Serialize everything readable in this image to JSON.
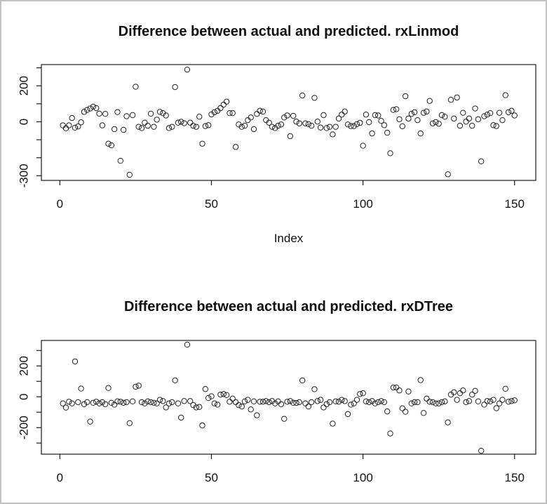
{
  "figure": {
    "background": "#ffffff",
    "border_color": "#c3c3c3",
    "point_color": "#222222",
    "axis_color": "#1a1a1a"
  },
  "chart_data": [
    {
      "id": "rxLinmod",
      "type": "scatter",
      "title": "Difference between actual and predicted. rxLinmod",
      "xlabel": "Index",
      "ylabel": "",
      "grid": false,
      "legend": "none",
      "marker": "open-circle",
      "xlim": [
        -6.1,
        157
      ],
      "ylim": [
        -326,
        318
      ],
      "x_ticks": [
        {
          "v": 0,
          "label": "0"
        },
        {
          "v": 50,
          "label": "50"
        },
        {
          "v": 100,
          "label": "100"
        },
        {
          "v": 150,
          "label": "150"
        }
      ],
      "y_ticks": [
        {
          "v": 300,
          "label": ""
        },
        {
          "v": 200,
          "label": "200"
        },
        {
          "v": 100,
          "label": ""
        },
        {
          "v": 0,
          "label": "0"
        },
        {
          "v": -100,
          "label": ""
        },
        {
          "v": -200,
          "label": ""
        },
        {
          "v": -300,
          "label": "-300"
        }
      ],
      "x_start": 1,
      "values": [
        -20,
        -36,
        -20,
        21,
        -33,
        -26,
        -3,
        55,
        66,
        74,
        84,
        76,
        45,
        -20,
        44,
        -122,
        -131,
        -41,
        54,
        -217,
        -45,
        31,
        -295,
        37,
        195,
        -28,
        -35,
        -5,
        -22,
        45,
        -28,
        12,
        55,
        48,
        35,
        -35,
        -28,
        193,
        -5,
        0,
        -8,
        290,
        -5,
        -22,
        -28,
        28,
        -122,
        -24,
        -19,
        41,
        53,
        61,
        76,
        95,
        112,
        48,
        48,
        -140,
        -15,
        -28,
        -22,
        9,
        24,
        -41,
        44,
        61,
        57,
        9,
        -5,
        -28,
        -35,
        -22,
        -15,
        24,
        35,
        -80,
        33,
        1,
        -9,
        146,
        -9,
        -13,
        -22,
        133,
        1,
        -32,
        37,
        -35,
        -28,
        -70,
        -28,
        18,
        40,
        57,
        -15,
        -24,
        -24,
        -13,
        -6,
        -133,
        40,
        -2,
        -65,
        37,
        35,
        5,
        -19,
        -61,
        -175,
        66,
        70,
        14,
        -25,
        142,
        18,
        44,
        53,
        9,
        -65,
        50,
        57,
        116,
        -9,
        -2,
        -11,
        37,
        28,
        -292,
        122,
        18,
        135,
        -22,
        50,
        1,
        18,
        -22,
        74,
        14,
        -220,
        31,
        40,
        48,
        -19,
        -24,
        50,
        9,
        148,
        53,
        61,
        35
      ]
    },
    {
      "id": "rxDTree",
      "type": "scatter",
      "title": "Difference between actual and predicted. rxDTree",
      "xlabel": "",
      "ylabel": "",
      "grid": false,
      "legend": "none",
      "marker": "open-circle",
      "xlim": [
        -6.1,
        157
      ],
      "ylim": [
        -372,
        365
      ],
      "x_ticks": [
        {
          "v": 0,
          "label": "0"
        },
        {
          "v": 50,
          "label": "50"
        },
        {
          "v": 100,
          "label": "100"
        },
        {
          "v": 150,
          "label": "150"
        }
      ],
      "y_ticks": [
        {
          "v": 300,
          "label": ""
        },
        {
          "v": 200,
          "label": "200"
        },
        {
          "v": 100,
          "label": ""
        },
        {
          "v": 0,
          "label": "0"
        },
        {
          "v": -100,
          "label": ""
        },
        {
          "v": -200,
          "label": "-200"
        },
        {
          "v": -300,
          "label": ""
        }
      ],
      "x_start": 1,
      "values": [
        -43,
        -70,
        -32,
        -43,
        229,
        -35,
        53,
        -48,
        -35,
        -161,
        -39,
        -32,
        -43,
        -35,
        -48,
        57,
        -39,
        -51,
        -30,
        -32,
        -39,
        -35,
        -171,
        -30,
        65,
        72,
        -35,
        -43,
        -30,
        -35,
        -39,
        -43,
        -20,
        -28,
        -69,
        -43,
        -35,
        106,
        -43,
        -135,
        -28,
        338,
        -28,
        -54,
        -69,
        -66,
        -186,
        50,
        -8,
        3,
        -43,
        -51,
        14,
        18,
        11,
        -32,
        -12,
        -35,
        -54,
        -63,
        -30,
        -20,
        -82,
        -30,
        -120,
        -32,
        -32,
        -28,
        -35,
        -28,
        -43,
        -30,
        -48,
        -143,
        -32,
        -28,
        -39,
        -40,
        -35,
        106,
        -43,
        -63,
        -35,
        49,
        -28,
        -20,
        -69,
        -48,
        -35,
        -174,
        -30,
        -32,
        -20,
        -28,
        -112,
        -51,
        -43,
        -20,
        18,
        23,
        -30,
        -35,
        -28,
        -43,
        -35,
        -28,
        -35,
        -95,
        -238,
        60,
        60,
        41,
        -75,
        -97,
        34,
        -43,
        -35,
        -35,
        108,
        -105,
        -12,
        -32,
        -35,
        -43,
        -43,
        -35,
        -30,
        -166,
        14,
        29,
        -20,
        23,
        41,
        -35,
        -28,
        14,
        38,
        -30,
        -350,
        -51,
        -28,
        -30,
        -20,
        -74,
        -43,
        -20,
        52,
        -32,
        -28,
        -23
      ]
    }
  ]
}
